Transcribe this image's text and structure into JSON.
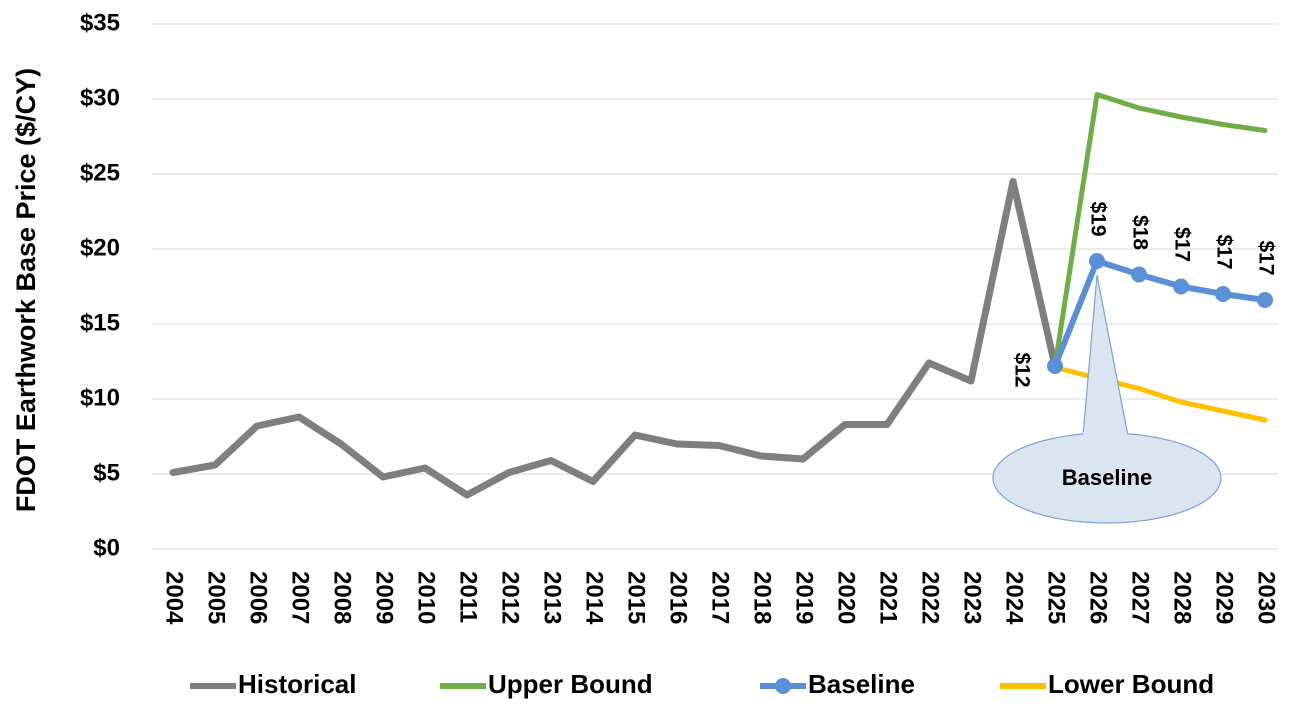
{
  "chart_data": {
    "type": "line",
    "y_label": "FDOT Earthwork Base Price ($/CY)",
    "annotation": "Baseline",
    "categories": [
      "2004",
      "2005",
      "2006",
      "2007",
      "2008",
      "2009",
      "2010",
      "2011",
      "2012",
      "2013",
      "2014",
      "2015",
      "2016",
      "2017",
      "2018",
      "2019",
      "2020",
      "2021",
      "2022",
      "2023",
      "2024",
      "2025",
      "2026",
      "2027",
      "2028",
      "2029",
      "2030"
    ],
    "series": [
      {
        "name": "Historical",
        "color": "#7f7f7f",
        "values": [
          5.1,
          5.6,
          8.2,
          8.8,
          7.0,
          4.8,
          5.4,
          3.6,
          5.1,
          5.9,
          4.5,
          7.6,
          7.0,
          6.9,
          6.2,
          6.0,
          8.3,
          8.3,
          12.4,
          11.2,
          24.5,
          12.2,
          null,
          null,
          null,
          null,
          null
        ]
      },
      {
        "name": "Upper Bound",
        "color": "#70ad47",
        "values": [
          null,
          null,
          null,
          null,
          null,
          null,
          null,
          null,
          null,
          null,
          null,
          null,
          null,
          null,
          null,
          null,
          null,
          null,
          null,
          null,
          null,
          12.2,
          30.3,
          29.4,
          28.8,
          28.3,
          27.9
        ]
      },
      {
        "name": "Baseline",
        "color": "#5b8fd6",
        "values": [
          null,
          null,
          null,
          null,
          null,
          null,
          null,
          null,
          null,
          null,
          null,
          null,
          null,
          null,
          null,
          null,
          null,
          null,
          null,
          null,
          null,
          12.2,
          19.2,
          18.3,
          17.5,
          17.0,
          16.6
        ],
        "value_labels": [
          null,
          null,
          null,
          null,
          null,
          null,
          null,
          null,
          null,
          null,
          null,
          null,
          null,
          null,
          null,
          null,
          null,
          null,
          null,
          null,
          null,
          "$12",
          "$19",
          "$18",
          "$17",
          "$17",
          "$17"
        ]
      },
      {
        "name": "Lower Bound",
        "color": "#ffc000",
        "values": [
          null,
          null,
          null,
          null,
          null,
          null,
          null,
          null,
          null,
          null,
          null,
          null,
          null,
          null,
          null,
          null,
          null,
          null,
          null,
          null,
          null,
          12.1,
          11.4,
          10.7,
          9.8,
          9.2,
          8.6
        ]
      }
    ],
    "ylim": [
      0,
      35
    ],
    "yticks": [
      {
        "value": 0,
        "label": "$0"
      },
      {
        "value": 5,
        "label": "$5"
      },
      {
        "value": 10,
        "label": "$10"
      },
      {
        "value": 15,
        "label": "$15"
      },
      {
        "value": 20,
        "label": "$20"
      },
      {
        "value": 25,
        "label": "$25"
      },
      {
        "value": 30,
        "label": "$30"
      },
      {
        "value": 35,
        "label": "$35"
      }
    ],
    "grid": true
  }
}
